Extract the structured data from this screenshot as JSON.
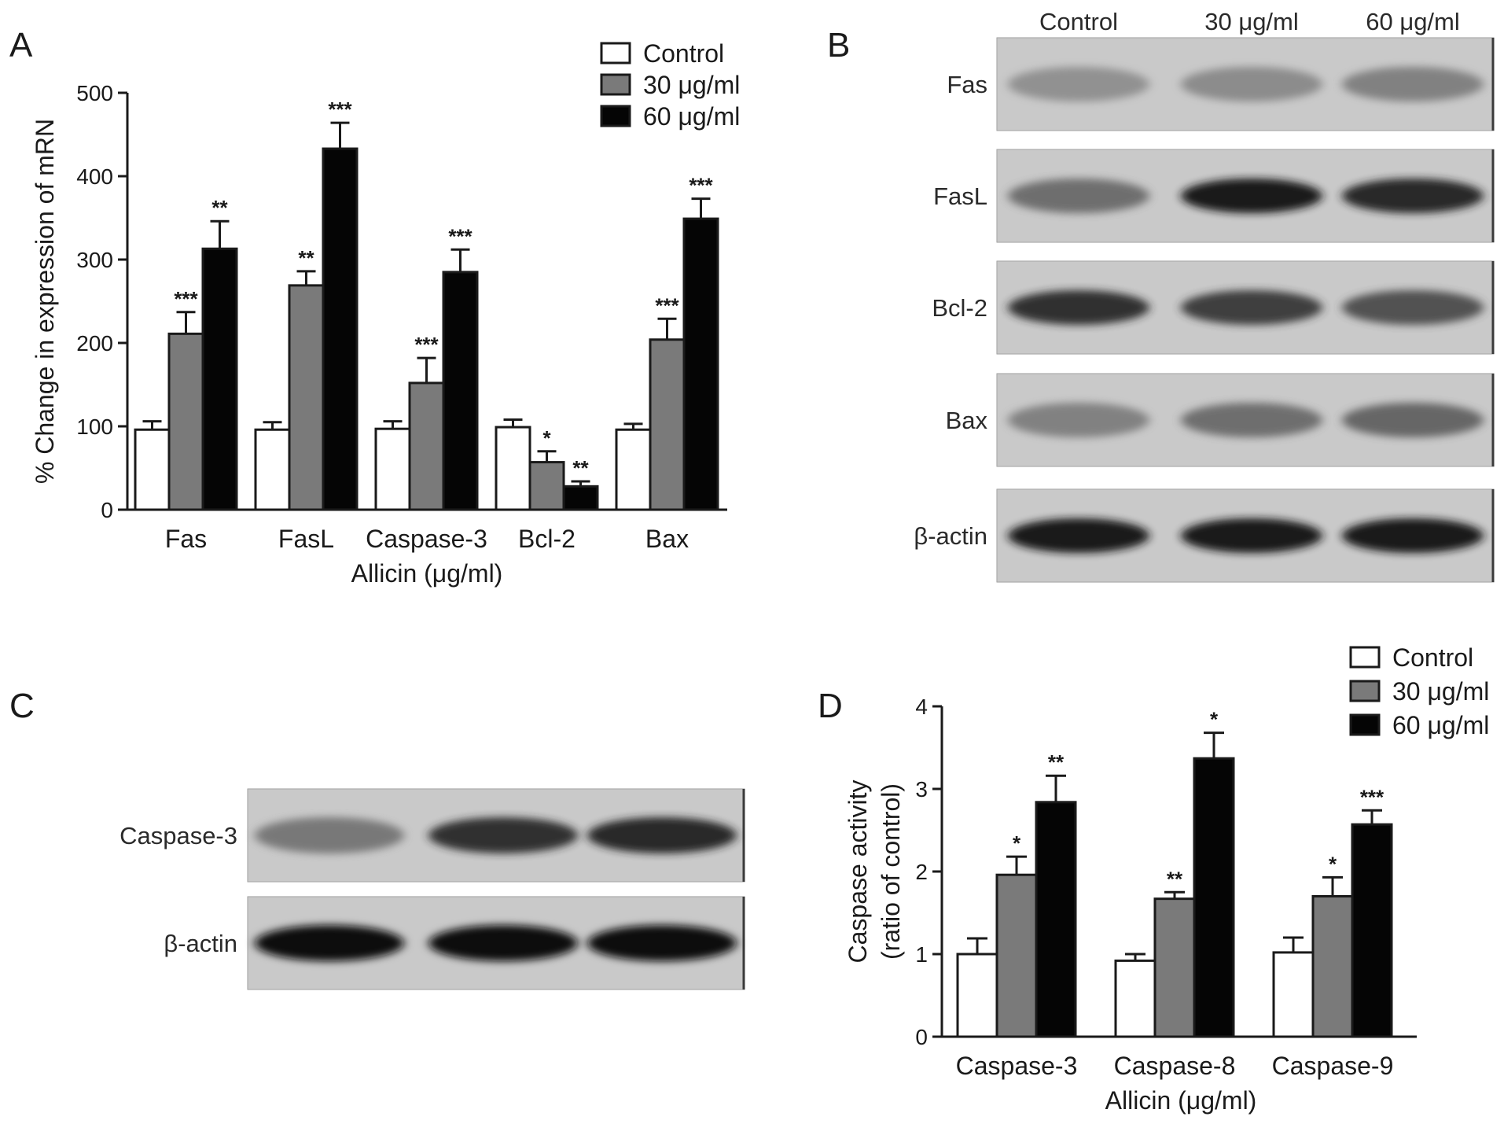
{
  "panels": {
    "a": "A",
    "b": "B",
    "c": "C",
    "d": "D"
  },
  "legend": {
    "control": "Control",
    "dose30": "30 μg/ml",
    "dose60": "60 μg/ml"
  },
  "colors": {
    "control": "#ffffff",
    "dose30": "#7a7a7a",
    "dose60": "#050505"
  },
  "chart_data": [
    {
      "type": "bar",
      "panel": "A",
      "categories": [
        "Fas",
        "FasL",
        "Caspase-3",
        "Bcl-2",
        "Bax"
      ],
      "series": [
        {
          "name": "Control",
          "values": [
            96,
            96,
            97,
            99,
            96
          ],
          "errors": [
            10,
            9,
            9,
            9,
            7
          ]
        },
        {
          "name": "30 μg/ml",
          "values": [
            211,
            269,
            152,
            57,
            204
          ],
          "errors": [
            26,
            17,
            30,
            13,
            25
          ]
        },
        {
          "name": "60 μg/ml",
          "values": [
            313,
            433,
            285,
            28,
            349
          ],
          "errors": [
            33,
            31,
            27,
            6,
            24
          ]
        }
      ],
      "significance": [
        [
          "",
          "***",
          "**"
        ],
        [
          "",
          "**",
          "***"
        ],
        [
          "",
          "***",
          "***"
        ],
        [
          "",
          "*",
          "**"
        ],
        [
          "",
          "***",
          "***"
        ]
      ],
      "xlabel": "Allicin (μg/ml)",
      "ylabel": "% Change in expression of mRN",
      "ylim": [
        0,
        500
      ],
      "yticks": [
        0,
        100,
        200,
        300,
        400,
        500
      ],
      "legend": "top-right"
    },
    {
      "type": "bar",
      "panel": "D",
      "categories": [
        "Caspase-3",
        "Caspase-8",
        "Caspase-9"
      ],
      "series": [
        {
          "name": "Control",
          "values": [
            1.0,
            0.92,
            1.02
          ],
          "errors": [
            0.19,
            0.08,
            0.18
          ]
        },
        {
          "name": "30 μg/ml",
          "values": [
            1.96,
            1.67,
            1.7
          ],
          "errors": [
            0.22,
            0.08,
            0.23
          ]
        },
        {
          "name": "60 μg/ml",
          "values": [
            2.84,
            3.37,
            2.57
          ],
          "errors": [
            0.32,
            0.31,
            0.17
          ]
        }
      ],
      "significance": [
        [
          "",
          "*",
          "**"
        ],
        [
          "",
          "**",
          "*"
        ],
        [
          "",
          "*",
          "***"
        ]
      ],
      "xlabel": "Allicin (μg/ml)",
      "ylabel_line1": "Caspase activity",
      "ylabel_line2": "(ratio of control)",
      "ylim": [
        0,
        4
      ],
      "yticks": [
        0,
        1,
        2,
        3,
        4
      ],
      "legend": "top-right"
    }
  ],
  "blot_b": {
    "lanes": [
      "Control",
      "30 μg/ml",
      "60 μg/ml"
    ],
    "rows": [
      {
        "label": "Fas",
        "intensity": [
          0.35,
          0.38,
          0.45
        ]
      },
      {
        "label": "FasL",
        "intensity": [
          0.55,
          0.95,
          0.9
        ]
      },
      {
        "label": "Bcl-2",
        "intensity": [
          0.85,
          0.8,
          0.7
        ]
      },
      {
        "label": "Bax",
        "intensity": [
          0.45,
          0.55,
          0.6
        ]
      },
      {
        "label": "β-actin",
        "intensity": [
          0.95,
          0.95,
          0.95
        ]
      }
    ]
  },
  "blot_c": {
    "rows": [
      {
        "label": "Caspase-3",
        "intensity": [
          0.5,
          0.85,
          0.9
        ]
      },
      {
        "label": "β-actin",
        "intensity": [
          1.0,
          1.0,
          1.0
        ]
      }
    ]
  }
}
